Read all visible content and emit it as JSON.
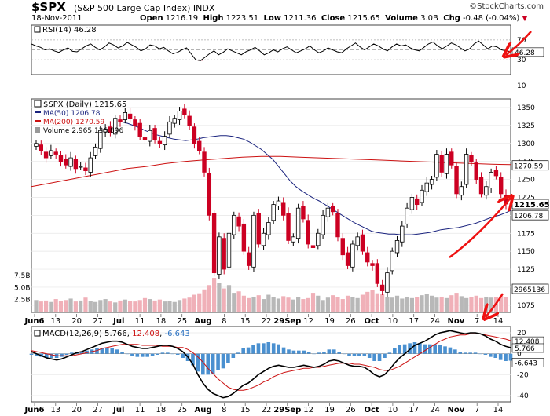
{
  "header": {
    "symbol": "$SPX",
    "description": "(S&P 500 Large Cap Index) INDX",
    "date": "18-Nov-2011",
    "open_label": "Open",
    "open": "1216.19",
    "high_label": "High",
    "high": "1223.51",
    "low_label": "Low",
    "low": "1211.36",
    "close_label": "Close",
    "close": "1215.65",
    "volume_label": "Volume",
    "volume": "3.0B",
    "chg_label": "Chg",
    "chg": "-0.48 (-0.04%)",
    "chg_icon": "down-triangle-icon",
    "logo": "©StockCharts.com"
  },
  "colors": {
    "up": "#000000",
    "down": "#cc0022",
    "ma50": "#1a237e",
    "ma200": "#cc1111",
    "vol_up": "#b8b8b8",
    "vol_down": "#f0b0b8",
    "macd_hist": "#4a90d0",
    "rsi_fill": "#cc6677",
    "annotation": "#ee1111"
  },
  "chart_data": [
    {
      "type": "line",
      "panel": "rsi",
      "legend": "RSI(14) 46.28",
      "current": 46.28,
      "yticks": [
        "70",
        "30"
      ],
      "ylim": [
        0,
        100
      ],
      "values": [
        62,
        58,
        55,
        50,
        52,
        48,
        45,
        50,
        54,
        47,
        46,
        52,
        58,
        62,
        55,
        50,
        56,
        64,
        60,
        54,
        58,
        65,
        60,
        55,
        48,
        52,
        60,
        58,
        52,
        55,
        48,
        42,
        45,
        50,
        54,
        42,
        30,
        28,
        35,
        42,
        48,
        40,
        45,
        52,
        48,
        44,
        40,
        46,
        50,
        55,
        48,
        40,
        44,
        50,
        46,
        52,
        56,
        50,
        44,
        48,
        52,
        58,
        50,
        44,
        48,
        54,
        50,
        46,
        44,
        52,
        58,
        64,
        56,
        50,
        56,
        62,
        58,
        52,
        48,
        56,
        62,
        58,
        60,
        54,
        50,
        48,
        55,
        62,
        66,
        58,
        52,
        58,
        64,
        60,
        54,
        48,
        52,
        62,
        68,
        60,
        52,
        58,
        56,
        50,
        48,
        46.28
      ]
    },
    {
      "type": "candlestick",
      "panel": "price",
      "legend": "$SPX (Daily) 1215.65",
      "ma50_legend": "MA(50) 1206.78",
      "ma200_legend": "MA(200) 1270.59",
      "volume_legend": "Volume 2,965,136,896",
      "yticks": [
        "1350",
        "1325",
        "1300",
        "1275",
        "1250",
        "1225",
        "1200",
        "1175",
        "1150",
        "1125",
        "1100",
        "1075"
      ],
      "ylim": [
        1065,
        1362
      ],
      "last_close": "1215.65",
      "ma50_last": "1206.78",
      "ma200_last": "1270.59",
      "closes": [
        1300,
        1290,
        1280,
        1290,
        1285,
        1275,
        1270,
        1280,
        1265,
        1268,
        1262,
        1280,
        1295,
        1318,
        1320,
        1315,
        1335,
        1330,
        1343,
        1335,
        1325,
        1310,
        1305,
        1318,
        1305,
        1300,
        1310,
        1330,
        1335,
        1345,
        1340,
        1325,
        1300,
        1290,
        1260,
        1200,
        1120,
        1170,
        1125,
        1175,
        1200,
        1185,
        1150,
        1130,
        1200,
        1160,
        1175,
        1190,
        1215,
        1220,
        1200,
        1165,
        1170,
        1210,
        1195,
        1160,
        1155,
        1175,
        1200,
        1210,
        1205,
        1170,
        1145,
        1130,
        1160,
        1170,
        1150,
        1135,
        1130,
        1105,
        1095,
        1120,
        1150,
        1165,
        1185,
        1210,
        1225,
        1215,
        1235,
        1245,
        1250,
        1285,
        1260,
        1285,
        1270,
        1230,
        1240,
        1285,
        1275,
        1250,
        1230,
        1240,
        1260,
        1255,
        1230,
        1215.65
      ],
      "ma50": [
        1330,
        1328,
        1325,
        1322,
        1318,
        1315,
        1312,
        1310,
        1308,
        1306,
        1305,
        1304,
        1305,
        1306,
        1308,
        1309,
        1310,
        1311,
        1311,
        1310,
        1308,
        1306,
        1302,
        1297,
        1292,
        1285,
        1278,
        1268,
        1258,
        1248,
        1240,
        1234,
        1229,
        1224,
        1220,
        1215,
        1210,
        1205,
        1200,
        1195,
        1190,
        1186,
        1182,
        1178,
        1176,
        1175,
        1174,
        1174,
        1173,
        1173,
        1173,
        1174,
        1175,
        1176,
        1178,
        1180,
        1181,
        1182,
        1183,
        1185,
        1187,
        1189,
        1192,
        1195,
        1198,
        1200,
        1203,
        1206.78
      ],
      "ma200": [
        1240,
        1245,
        1250,
        1255,
        1260,
        1265,
        1268,
        1272,
        1275,
        1277,
        1279,
        1281,
        1282,
        1282,
        1281,
        1280,
        1279,
        1278,
        1277,
        1276,
        1275,
        1274,
        1273,
        1272,
        1271,
        1270.59
      ],
      "volume_yticks": [
        "7.5B",
        "5.0B",
        "2.5B"
      ],
      "volume_last": "2965136",
      "volume": [
        2.4,
        2.1,
        2.3,
        2.0,
        2.6,
        2.2,
        2.4,
        2.7,
        2.1,
        2.3,
        2.9,
        2.2,
        2.0,
        2.4,
        2.6,
        2.1,
        1.9,
        2.3,
        2.5,
        2.2,
        2.1,
        2.4,
        2.8,
        2.6,
        2.3,
        2.5,
        2.1,
        2.2,
        2.0,
        2.4,
        2.7,
        2.9,
        3.5,
        3.8,
        4.6,
        5.5,
        7.0,
        6.0,
        4.8,
        5.5,
        3.9,
        4.2,
        3.3,
        2.8,
        3.1,
        3.4,
        2.6,
        3.5,
        3.0,
        2.7,
        3.2,
        2.9,
        2.5,
        3.0,
        2.6,
        2.8,
        3.9,
        3.3,
        2.4,
        2.9,
        3.4,
        3.0,
        2.6,
        3.3,
        3.0,
        2.8,
        3.5,
        4.1,
        4.4,
        3.8,
        3.6,
        3.0,
        2.9,
        3.3,
        2.7,
        3.1,
        2.8,
        3.0,
        3.4,
        3.6,
        3.3,
        2.9,
        3.1,
        2.8,
        3.4,
        3.9,
        3.2,
        2.8,
        3.0,
        3.3,
        2.8,
        3.1,
        2.9,
        3.0,
        3.2,
        2.97
      ]
    },
    {
      "type": "line",
      "panel": "macd",
      "legend_prefix": "MACD(12,26,9)",
      "macd_value": "5.766",
      "signal_value": "12.408",
      "hist_value": "-6.643",
      "yticks": [
        "20",
        "0",
        "-20",
        "-40"
      ],
      "ylim": [
        -46,
        26
      ],
      "last_macd_label": "5.766",
      "last_signal_label": "12.408",
      "last_hist_label": "-6.643",
      "macd": [
        2,
        0,
        -2,
        -4,
        -5,
        -6,
        -5,
        -3,
        -1,
        1,
        2,
        4,
        6,
        8,
        10,
        11,
        12,
        12,
        11,
        9,
        7,
        6,
        5,
        5,
        6,
        7,
        8,
        8,
        7,
        5,
        2,
        -3,
        -10,
        -20,
        -28,
        -34,
        -38,
        -40,
        -42,
        -41,
        -38,
        -34,
        -30,
        -28,
        -24,
        -20,
        -17,
        -14,
        -12,
        -11,
        -12,
        -13,
        -13,
        -12,
        -11,
        -12,
        -13,
        -12,
        -10,
        -7,
        -6,
        -7,
        -9,
        -11,
        -12,
        -12,
        -13,
        -16,
        -20,
        -22,
        -20,
        -15,
        -9,
        -4,
        0,
        4,
        8,
        10,
        12,
        15,
        18,
        20,
        21,
        22,
        21,
        20,
        19,
        20,
        20,
        19,
        17,
        14,
        12,
        9,
        7,
        5.766
      ],
      "signal": [
        3,
        2,
        1,
        0,
        -1,
        -2,
        -2,
        -2,
        -2,
        -1,
        0,
        1,
        2,
        3,
        5,
        6,
        7,
        8,
        9,
        9,
        9,
        9,
        8,
        8,
        8,
        8,
        7,
        7,
        7,
        6,
        6,
        4,
        1,
        -3,
        -8,
        -14,
        -19,
        -24,
        -28,
        -32,
        -34,
        -35,
        -35,
        -34,
        -32,
        -30,
        -27,
        -25,
        -22,
        -20,
        -18,
        -17,
        -16,
        -15,
        -14,
        -14,
        -13,
        -13,
        -12,
        -11,
        -10,
        -9,
        -9,
        -9,
        -10,
        -10,
        -11,
        -12,
        -13,
        -15,
        -16,
        -16,
        -14,
        -12,
        -9,
        -6,
        -3,
        0,
        3,
        6,
        9,
        12,
        14,
        16,
        17,
        18,
        18,
        19,
        19,
        19,
        18,
        17,
        16,
        15,
        14,
        12.408
      ]
    }
  ],
  "x_axis": {
    "labels": [
      "Jun6",
      "13",
      "20",
      "27",
      "Jul",
      "11",
      "18",
      "25",
      "Aug",
      "8",
      "15",
      "22",
      "29Sep",
      "12",
      "19",
      "26",
      "Oct",
      "10",
      "17",
      "24",
      "Nov",
      "7",
      "14"
    ],
    "bold": [
      "Jun6",
      "Jul",
      "Aug",
      "29Sep",
      "Oct",
      "Nov"
    ]
  }
}
